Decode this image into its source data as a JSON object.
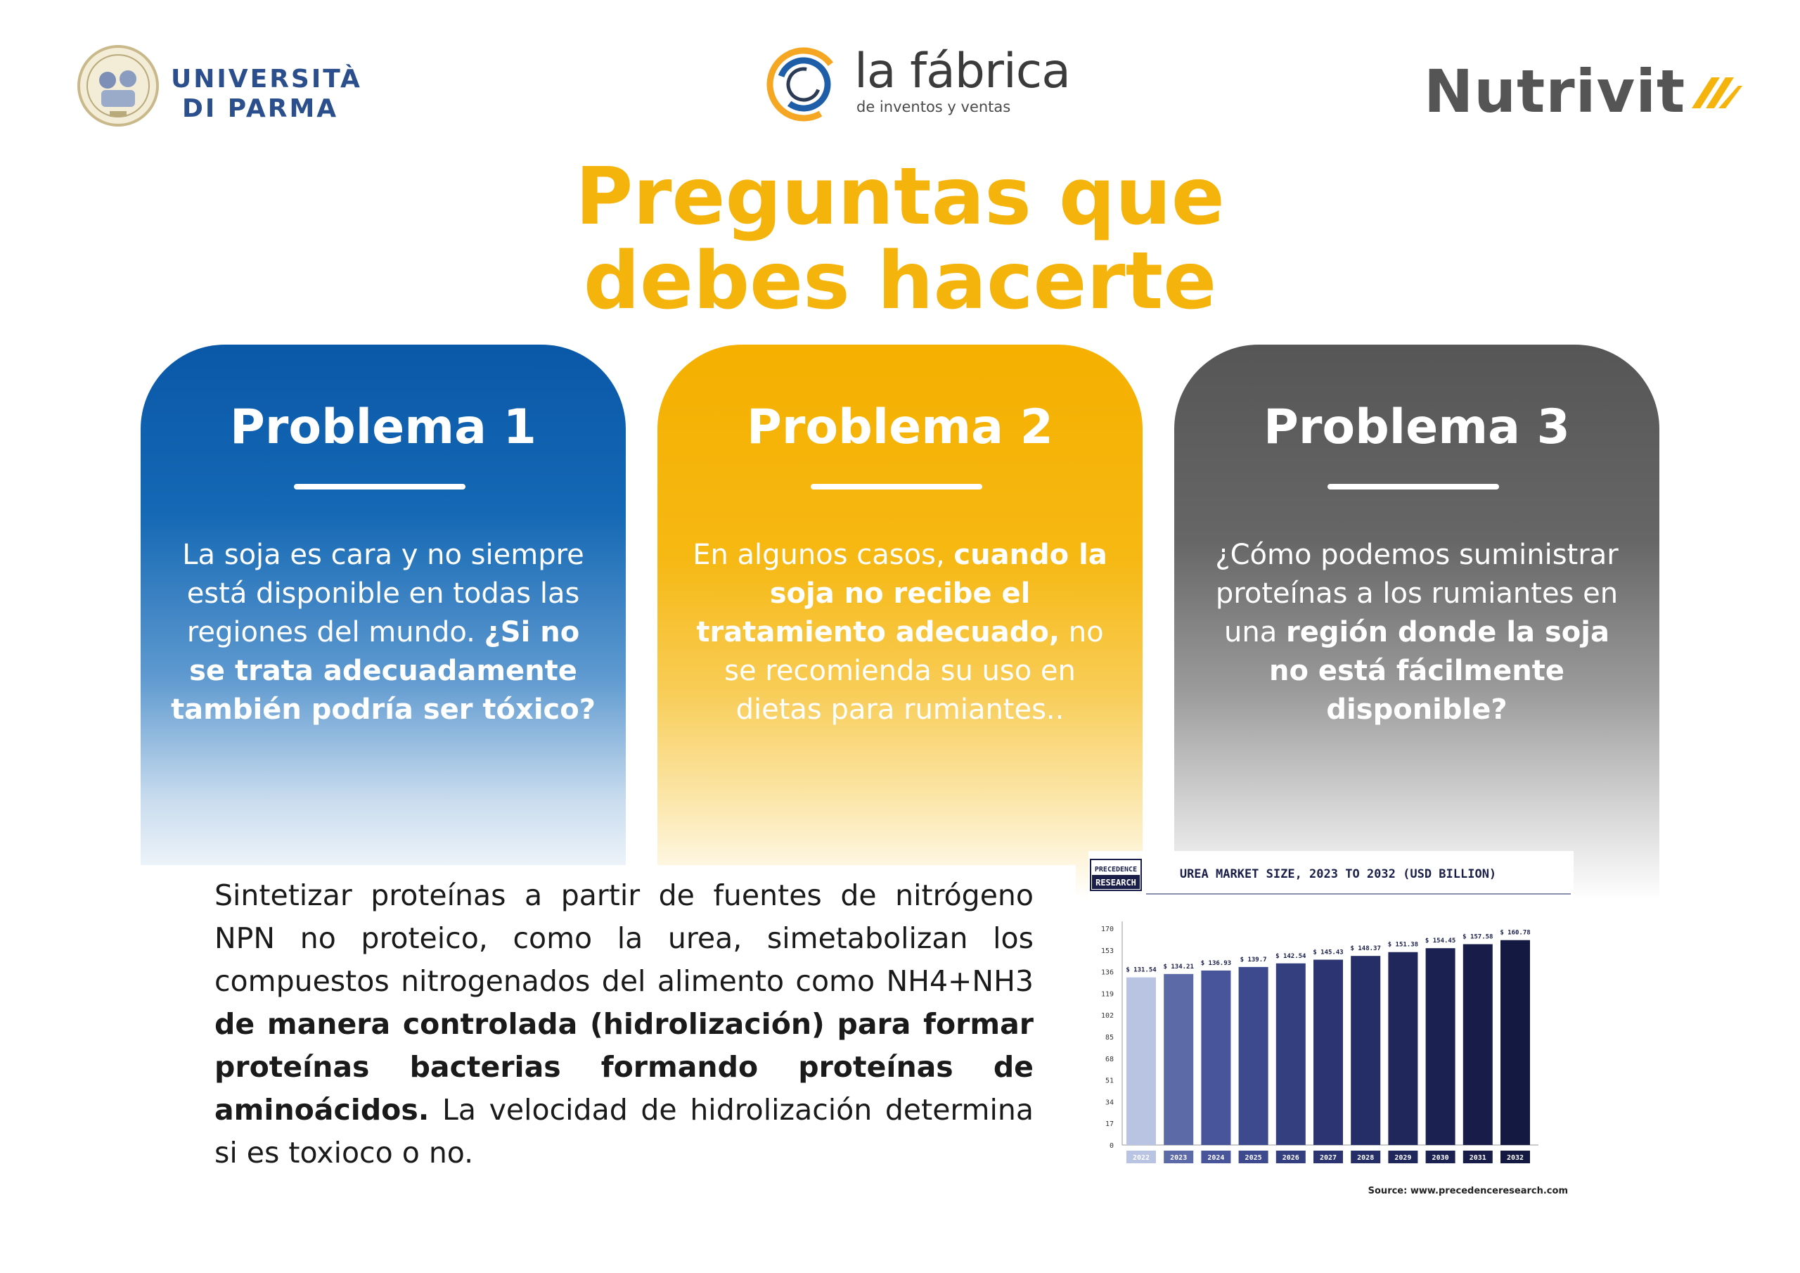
{
  "logos": {
    "university": {
      "line1": "UNIVERSITÀ",
      "line2": "DI PARMA",
      "color": "#2a4f8c"
    },
    "fabrica": {
      "title": "la fábrica",
      "subtitle": "de inventos y ventas",
      "ring_colors": [
        "#1e5ea8",
        "#f5a623"
      ]
    },
    "nutrivit": {
      "name": "Nutrivit",
      "mark_color": "#f5b40c"
    }
  },
  "title": {
    "line1": "Preguntas que",
    "line2": "debes hacerte",
    "color": "#f5b40c"
  },
  "cards": [
    {
      "title": "Problema 1",
      "color": "#0a58a8",
      "text_normal": "La soja es cara y no siempre está disponible en todas las regiones del mundo. ",
      "text_bold": "¿Si no se trata adecuadamente también podría ser tóxico?",
      "text_after": ""
    },
    {
      "title": "Problema 2",
      "color": "#f5b000",
      "text_normal": "En algunos casos, ",
      "text_bold": "cuando la soja no recibe el tratamiento adecuado,",
      "text_after": " no se recomienda su uso en dietas para rumiantes.."
    },
    {
      "title": "Problema 3",
      "color": "#565656",
      "text_normal": "¿Cómo podemos suministrar proteínas a los rumiantes en una ",
      "text_bold": "región donde la soja no está fácilmente disponible?",
      "text_after": ""
    }
  ],
  "body": {
    "part1": "Sintetizar proteínas a partir de fuentes de nitrógeno NPN no proteico, como la urea, simetabolizan los compuestos nitrogenados del alimento como NH4+NH3 ",
    "part2_bold": "de manera controlada (hidrolización) para formar proteínas bacterias formando proteínas de aminoácidos.",
    "part3": " La velocidad de hidrolización determina si es toxioco o no."
  },
  "chart_data": {
    "type": "bar",
    "title": "UREA MARKET SIZE, 2023 TO 2032 (USD BILLION)",
    "brand_line1": "PRECEDENCE",
    "brand_line2": "RESEARCH",
    "source": "Source: www.precedenceresearch.com",
    "categories": [
      "2022",
      "2023",
      "2024",
      "2025",
      "2026",
      "2027",
      "2028",
      "2029",
      "2030",
      "2031",
      "2032"
    ],
    "values": [
      131.54,
      134.21,
      136.93,
      139.7,
      142.54,
      145.43,
      148.37,
      151.38,
      154.45,
      157.58,
      160.78
    ],
    "data_labels": [
      "$ 131.54",
      "$ 134.21",
      "$ 136.93",
      "$ 139.7",
      "$ 142.54",
      "$ 145.43",
      "$ 148.37",
      "$ 151.38",
      "$ 154.45",
      "$ 157.58",
      "$ 160.78"
    ],
    "y_ticks": [
      0,
      17,
      34,
      51,
      68,
      85,
      102,
      119,
      136,
      153,
      170
    ],
    "ylim": [
      0,
      170
    ],
    "bar_colors": [
      "#b9c3e2",
      "#5d6aa8",
      "#48559a",
      "#3d4a8e",
      "#343f80",
      "#2c3572",
      "#252e66",
      "#1f275b",
      "#1b2252",
      "#171d48",
      "#131940"
    ],
    "grid": false
  }
}
